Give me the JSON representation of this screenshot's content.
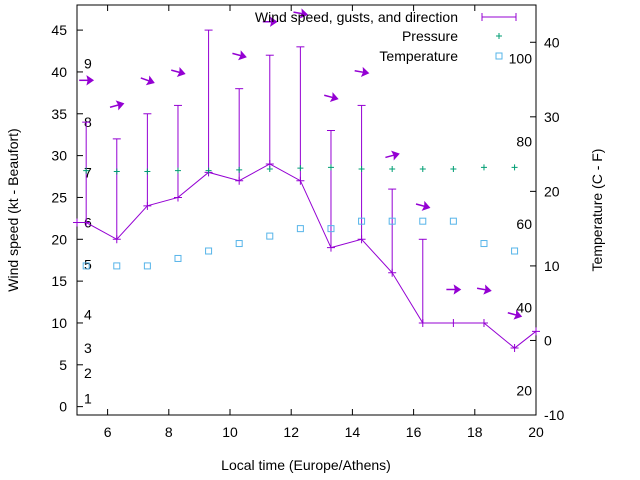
{
  "chart_data": {
    "type": "line",
    "xlabel": "Local time (Europe/Athens)",
    "ylabel": "Wind speed (kt - Beaufort)",
    "y2label": "Temperature (C - F)",
    "xlim": [
      5,
      20
    ],
    "ylim": [
      -1,
      48
    ],
    "y2lim": [
      -10,
      45
    ],
    "grid": false,
    "legend_position": "top-right",
    "x_ticks": [
      "6",
      "8",
      "10",
      "12",
      "14",
      "16",
      "18",
      "20"
    ],
    "y_ticks": [
      "0",
      "5",
      "10",
      "15",
      "20",
      "25",
      "30",
      "35",
      "40",
      "45"
    ],
    "y2_ticks": [
      "-10",
      "0",
      "10",
      "20",
      "30",
      "40"
    ],
    "beaufort_labels": [
      {
        "label": "1",
        "kt": 1
      },
      {
        "label": "2",
        "kt": 4
      },
      {
        "label": "3",
        "kt": 7
      },
      {
        "label": "4",
        "kt": 11
      },
      {
        "label": "5",
        "kt": 17
      },
      {
        "label": "6",
        "kt": 22
      },
      {
        "label": "7",
        "kt": 28
      },
      {
        "label": "8",
        "kt": 34
      },
      {
        "label": "9",
        "kt": 41
      }
    ],
    "fahrenheit_labels": [
      {
        "label": "20",
        "celsius": -6.7
      },
      {
        "label": "40",
        "celsius": 4.4
      },
      {
        "label": "60",
        "celsius": 15.6
      },
      {
        "label": "80",
        "celsius": 26.7
      },
      {
        "label": "100",
        "celsius": 37.8
      }
    ],
    "series": [
      {
        "name": "Wind speed, gusts, and direction",
        "color": "#9400d3",
        "x": [
          5.0,
          5.3,
          6.3,
          7.3,
          8.3,
          9.3,
          10.3,
          11.3,
          12.3,
          13.3,
          14.3,
          15.3,
          16.3,
          17.3,
          18.3,
          19.3,
          20.0
        ],
        "values": [
          22,
          22,
          20,
          24,
          25,
          28,
          27,
          29,
          27,
          19,
          20,
          16,
          10,
          10,
          10,
          7,
          9
        ],
        "gusts": [
          null,
          34,
          32,
          35,
          36,
          45,
          38,
          42,
          43,
          33,
          36,
          26,
          20,
          null,
          null,
          null,
          null
        ],
        "direction_arrows": [
          {
            "x": 5.3,
            "kt": 39,
            "angle_deg": 0
          },
          {
            "x": 6.3,
            "kt": 36,
            "angle_deg": -15
          },
          {
            "x": 7.3,
            "kt": 39,
            "angle_deg": 20
          },
          {
            "x": 8.3,
            "kt": 40,
            "angle_deg": 15
          },
          {
            "x": 10.3,
            "kt": 42,
            "angle_deg": 15
          },
          {
            "x": 11.3,
            "kt": 46,
            "angle_deg": 0
          },
          {
            "x": 12.3,
            "kt": 47,
            "angle_deg": 10
          },
          {
            "x": 13.3,
            "kt": 37,
            "angle_deg": 15
          },
          {
            "x": 14.3,
            "kt": 40,
            "angle_deg": 10
          },
          {
            "x": 15.3,
            "kt": 30,
            "angle_deg": -15
          },
          {
            "x": 16.3,
            "kt": 24,
            "angle_deg": 15
          },
          {
            "x": 17.3,
            "kt": 14,
            "angle_deg": 0
          },
          {
            "x": 18.3,
            "kt": 14,
            "angle_deg": 10
          },
          {
            "x": 19.3,
            "kt": 11,
            "angle_deg": 15
          }
        ]
      },
      {
        "name": "Pressure",
        "color": "#009e73",
        "x": [
          5.3,
          6.3,
          7.3,
          8.3,
          9.3,
          10.3,
          11.3,
          12.3,
          13.3,
          14.3,
          15.3,
          16.3,
          17.3,
          18.3,
          19.3
        ],
        "values": [
          28.2,
          28.1,
          28.1,
          28.2,
          28.2,
          28.3,
          28.4,
          28.5,
          28.6,
          28.4,
          28.4,
          28.4,
          28.4,
          28.6,
          28.6
        ]
      },
      {
        "name": "Temperature",
        "color": "#56b4e9",
        "x": [
          5.3,
          6.3,
          7.3,
          8.3,
          9.3,
          10.3,
          11.3,
          12.3,
          13.3,
          14.3,
          15.3,
          16.3,
          17.3,
          18.3,
          19.3
        ],
        "values": [
          10,
          10,
          10,
          11,
          12,
          13,
          14,
          15,
          15,
          16,
          16,
          16,
          16,
          13,
          12
        ]
      }
    ]
  }
}
